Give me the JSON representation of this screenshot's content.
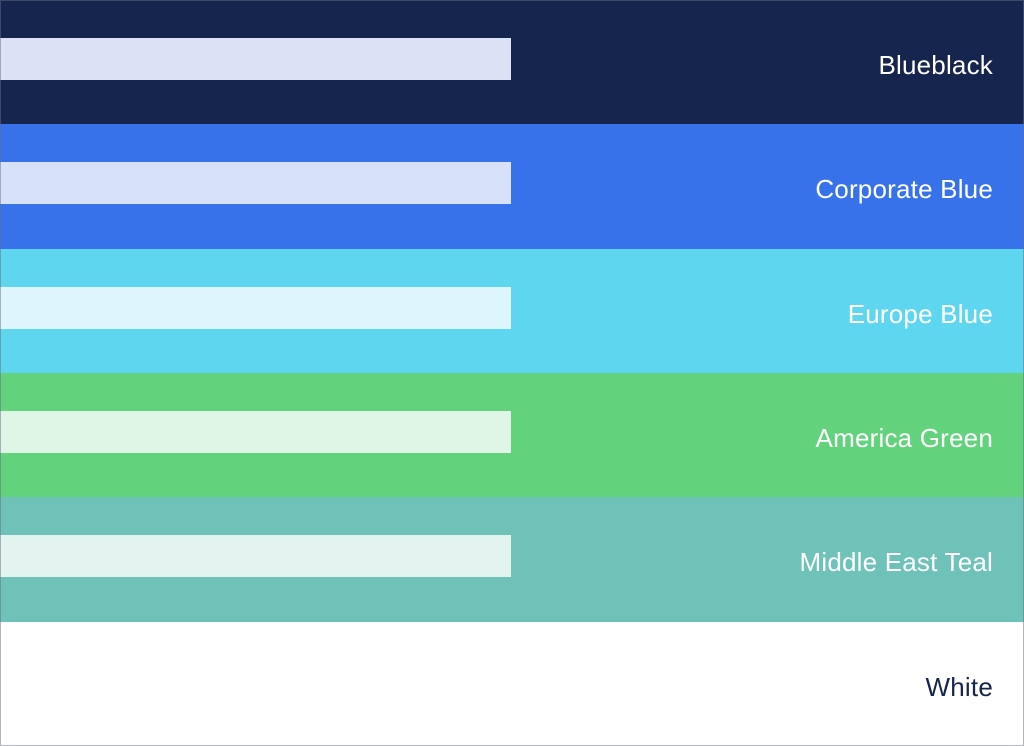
{
  "palette": {
    "rows": [
      {
        "name": "Blueblack",
        "color": "#16254E",
        "tint": "#DCE2F5",
        "label_color": "#FFFFFF"
      },
      {
        "name": "Corporate Blue",
        "color": "#3772EB",
        "tint": "#D7E2FA",
        "label_color": "#FFFFFF"
      },
      {
        "name": "Europe Blue",
        "color": "#5FD6EF",
        "tint": "#DEF6FB",
        "label_color": "#FFFFFF"
      },
      {
        "name": "America Green",
        "color": "#62D37C",
        "tint": "#DFF5E5",
        "label_color": "#FFFFFF"
      },
      {
        "name": "Middle East Teal",
        "color": "#6FC2B8",
        "tint": "#E2F3F0",
        "label_color": "#FFFFFF"
      },
      {
        "name": "White",
        "color": "#FFFFFF",
        "tint": null,
        "label_color": "#16254E"
      }
    ]
  }
}
